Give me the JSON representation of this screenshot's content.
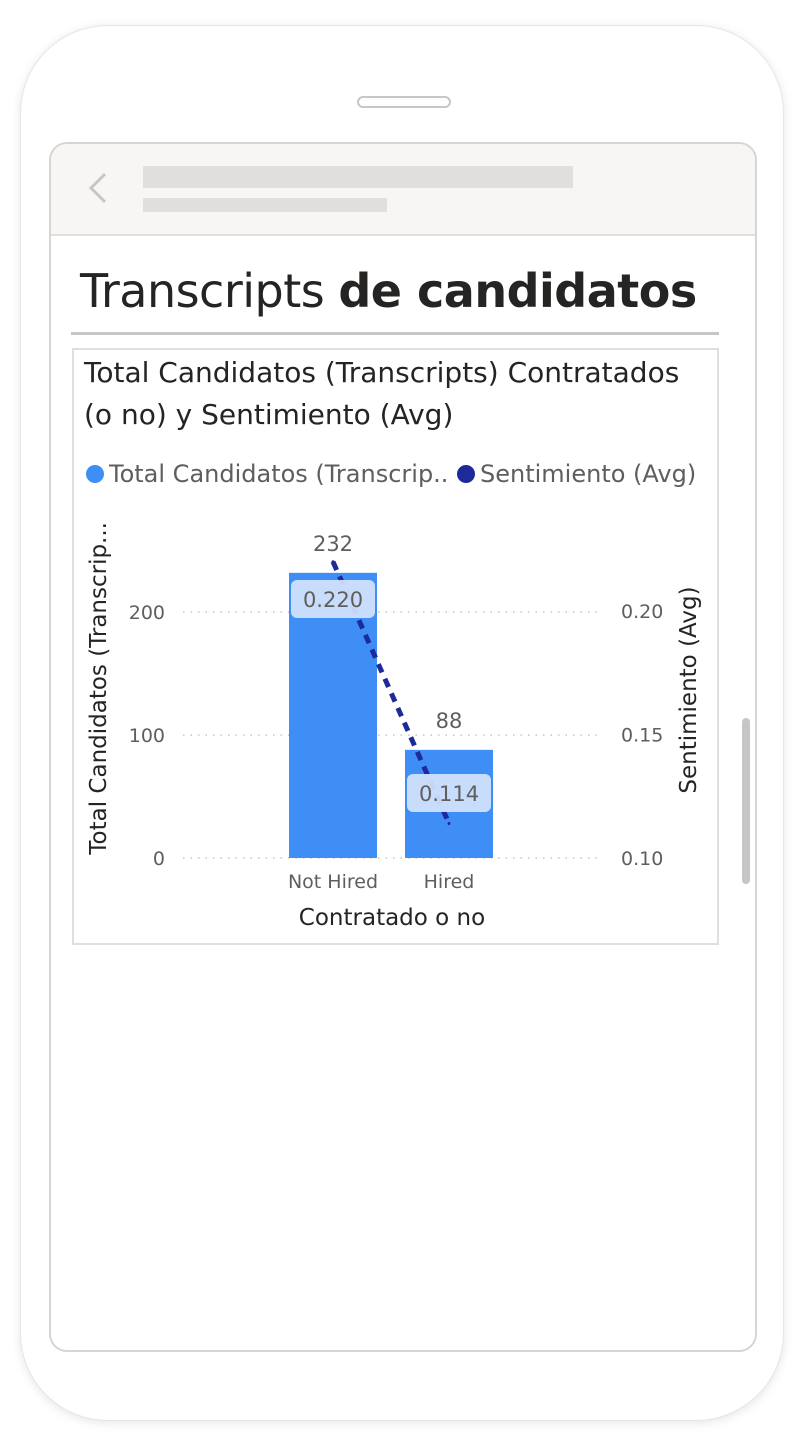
{
  "page": {
    "title_regular": "Transcripts ",
    "title_bold": "de candidatos"
  },
  "colors": {
    "bar": "#3f8ef5",
    "line": "#1c2a9a",
    "grid": "#c8c6c4",
    "text": "#605e5c",
    "label_bg": "#d4e4fb"
  },
  "icons": {
    "back": "chevron-left-icon"
  },
  "chart_data": {
    "type": "bar",
    "title": "Total Candidatos (Transcripts) Contratados (o no) y Sentimiento (Avg)",
    "xlabel": "Contratado o no",
    "ylabel": "Total Candidatos (Transcrip...",
    "y2label": "Sentimiento (Avg)",
    "categories": [
      "Not Hired",
      "Hired"
    ],
    "series": [
      {
        "name": "Total Candidatos (Transcrip...",
        "type": "bar",
        "axis": "left",
        "values": [
          232,
          88
        ],
        "labels": [
          "232",
          "88"
        ]
      },
      {
        "name": "Sentimiento (Avg)",
        "type": "line",
        "axis": "right",
        "values": [
          0.22,
          0.114
        ],
        "labels": [
          "0.220",
          "0.114"
        ]
      }
    ],
    "ylim": [
      0,
      240
    ],
    "y2lim": [
      0.1,
      0.2195
    ],
    "yticks": [
      0,
      100,
      200
    ],
    "ytick_labels": [
      "0",
      "100",
      "200"
    ],
    "y2ticks": [
      0.1,
      0.15,
      0.2
    ],
    "y2tick_labels": [
      "0.10",
      "0.15",
      "0.20"
    ],
    "legend_position": "top-left",
    "grid": true
  }
}
